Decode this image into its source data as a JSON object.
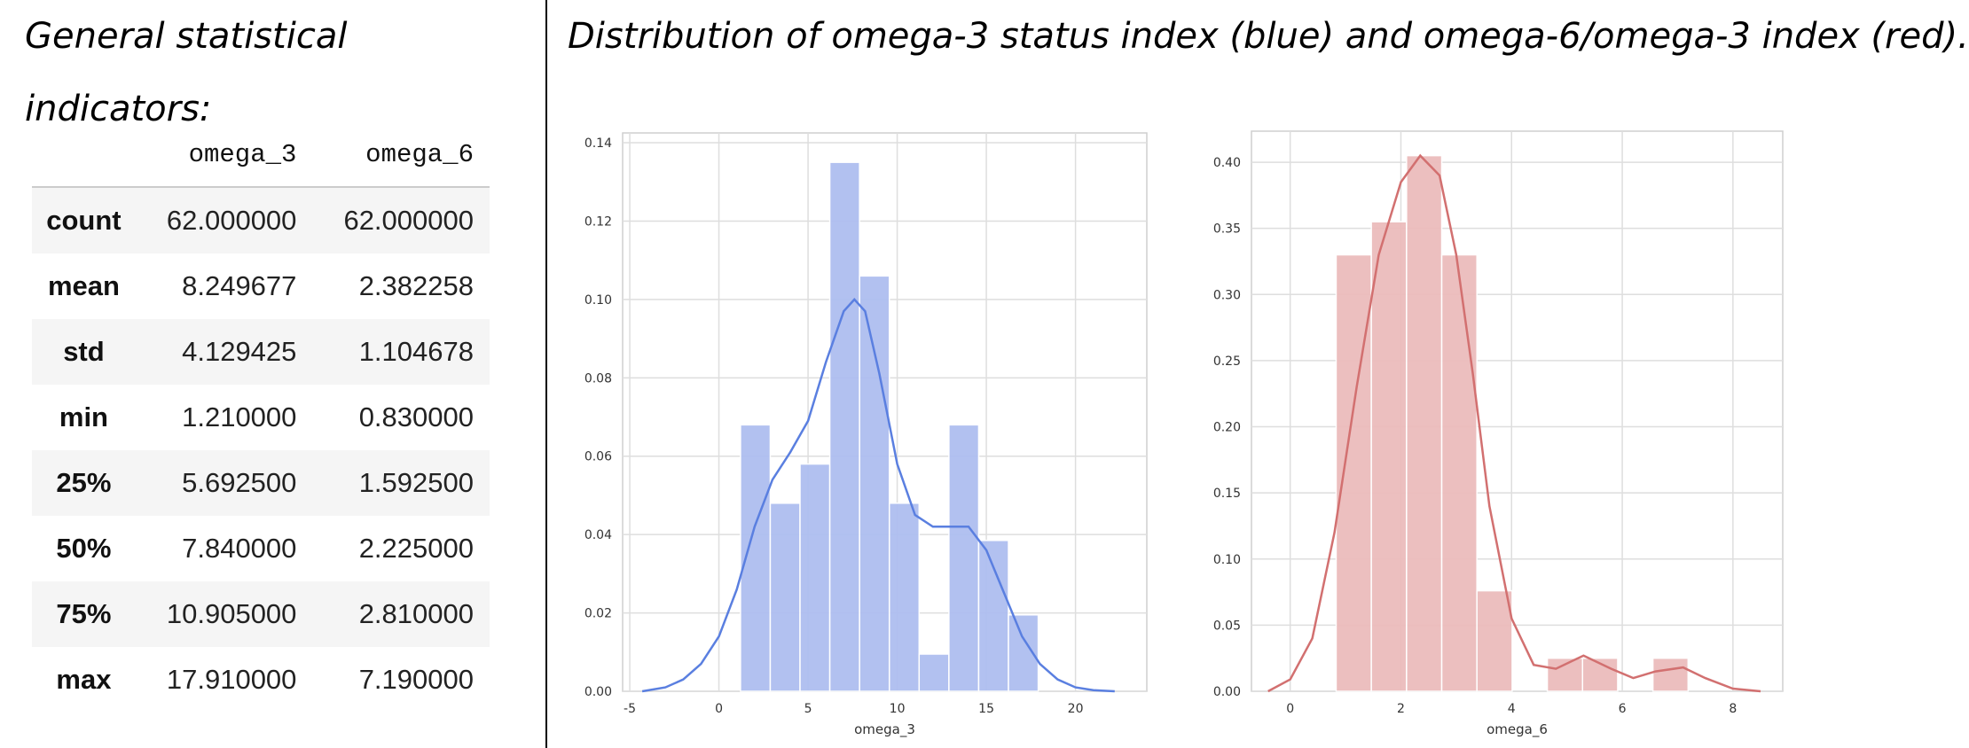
{
  "left_title": "General statistical indicators:",
  "right_title": "Distribution of omega-3 status index (blue) and omega-6/omega-3 index (red).",
  "stats": {
    "columns": [
      "omega_3",
      "omega_6"
    ],
    "rows": [
      {
        "label": "count",
        "values": [
          "62.000000",
          "62.000000"
        ]
      },
      {
        "label": "mean",
        "values": [
          "8.249677",
          "2.382258"
        ]
      },
      {
        "label": "std",
        "values": [
          "4.129425",
          "1.104678"
        ]
      },
      {
        "label": "min",
        "values": [
          "1.210000",
          "0.830000"
        ]
      },
      {
        "label": "25%",
        "values": [
          "5.692500",
          "1.592500"
        ]
      },
      {
        "label": "50%",
        "values": [
          "7.840000",
          "2.225000"
        ]
      },
      {
        "label": "75%",
        "values": [
          "10.905000",
          "2.810000"
        ]
      },
      {
        "label": "max",
        "values": [
          "17.910000",
          "7.190000"
        ]
      }
    ]
  },
  "chart_data": [
    {
      "type": "histogram",
      "xlabel": "omega_3",
      "ylabel": "",
      "xlim": [
        -5.4,
        24.0
      ],
      "ylim": [
        0,
        0.1425
      ],
      "xticks": [
        -5,
        0,
        5,
        10,
        15,
        20
      ],
      "yticks": [
        0.0,
        0.02,
        0.04,
        0.06,
        0.08,
        0.1,
        0.12,
        0.14
      ],
      "ytick_labels": [
        "0.00",
        "0.02",
        "0.04",
        "0.06",
        "0.08",
        "0.10",
        "0.12",
        "0.14"
      ],
      "bar_color": "#aebef0",
      "line_color": "#5a7fe0",
      "bins": [
        {
          "x0": 1.21,
          "x1": 2.88,
          "y": 0.068
        },
        {
          "x0": 2.88,
          "x1": 4.55,
          "y": 0.048
        },
        {
          "x0": 4.55,
          "x1": 6.22,
          "y": 0.058
        },
        {
          "x0": 6.22,
          "x1": 7.89,
          "y": 0.135
        },
        {
          "x0": 7.89,
          "x1": 9.56,
          "y": 0.106
        },
        {
          "x0": 9.56,
          "x1": 11.23,
          "y": 0.048
        },
        {
          "x0": 11.23,
          "x1": 12.9,
          "y": 0.0095
        },
        {
          "x0": 12.9,
          "x1": 14.57,
          "y": 0.068
        },
        {
          "x0": 14.57,
          "x1": 16.24,
          "y": 0.0385
        },
        {
          "x0": 16.24,
          "x1": 17.91,
          "y": 0.0195
        }
      ],
      "kde": [
        [
          -4.3,
          0.0
        ],
        [
          -3,
          0.001
        ],
        [
          -2,
          0.003
        ],
        [
          -1,
          0.007
        ],
        [
          0,
          0.014
        ],
        [
          1,
          0.026
        ],
        [
          2,
          0.042
        ],
        [
          3,
          0.054
        ],
        [
          4,
          0.061
        ],
        [
          5,
          0.069
        ],
        [
          6,
          0.084
        ],
        [
          7,
          0.097
        ],
        [
          7.6,
          0.1
        ],
        [
          8.2,
          0.097
        ],
        [
          9,
          0.081
        ],
        [
          10,
          0.058
        ],
        [
          11,
          0.045
        ],
        [
          12,
          0.042
        ],
        [
          13,
          0.042
        ],
        [
          14,
          0.042
        ],
        [
          15,
          0.036
        ],
        [
          16,
          0.025
        ],
        [
          17,
          0.014
        ],
        [
          18,
          0.007
        ],
        [
          19,
          0.003
        ],
        [
          20,
          0.001
        ],
        [
          21,
          0.0003
        ],
        [
          22.2,
          0.0
        ]
      ]
    },
    {
      "type": "histogram",
      "xlabel": "omega_6",
      "ylabel": "",
      "xlim": [
        -0.7,
        8.9
      ],
      "ylim": [
        0,
        0.4235
      ],
      "xticks": [
        0,
        2,
        4,
        6,
        8
      ],
      "yticks": [
        0.0,
        0.05,
        0.1,
        0.15,
        0.2,
        0.25,
        0.3,
        0.35,
        0.4
      ],
      "ytick_labels": [
        "0.00",
        "0.05",
        "0.10",
        "0.15",
        "0.20",
        "0.25",
        "0.30",
        "0.35",
        "0.40"
      ],
      "bar_color": "#ecbcbc",
      "line_color": "#d27070",
      "bins": [
        {
          "x0": 0.83,
          "x1": 1.466,
          "y": 0.33
        },
        {
          "x0": 1.466,
          "x1": 2.102,
          "y": 0.355
        },
        {
          "x0": 2.102,
          "x1": 2.738,
          "y": 0.405
        },
        {
          "x0": 2.738,
          "x1": 3.374,
          "y": 0.33
        },
        {
          "x0": 3.374,
          "x1": 4.01,
          "y": 0.076
        },
        {
          "x0": 4.01,
          "x1": 4.646,
          "y": 0.0
        },
        {
          "x0": 4.646,
          "x1": 5.282,
          "y": 0.025
        },
        {
          "x0": 5.282,
          "x1": 5.918,
          "y": 0.025
        },
        {
          "x0": 5.918,
          "x1": 6.554,
          "y": 0.0
        },
        {
          "x0": 6.554,
          "x1": 7.19,
          "y": 0.025
        }
      ],
      "kde": [
        [
          -0.4,
          0.0
        ],
        [
          0,
          0.009
        ],
        [
          0.4,
          0.04
        ],
        [
          0.8,
          0.12
        ],
        [
          1.2,
          0.23
        ],
        [
          1.6,
          0.33
        ],
        [
          2.0,
          0.385
        ],
        [
          2.35,
          0.405
        ],
        [
          2.7,
          0.39
        ],
        [
          3.0,
          0.33
        ],
        [
          3.3,
          0.24
        ],
        [
          3.6,
          0.14
        ],
        [
          4.0,
          0.055
        ],
        [
          4.4,
          0.02
        ],
        [
          4.8,
          0.017
        ],
        [
          5.3,
          0.027
        ],
        [
          5.8,
          0.017
        ],
        [
          6.2,
          0.01
        ],
        [
          6.6,
          0.015
        ],
        [
          7.1,
          0.018
        ],
        [
          7.5,
          0.01
        ],
        [
          8.0,
          0.002
        ],
        [
          8.5,
          0.0
        ]
      ]
    }
  ]
}
